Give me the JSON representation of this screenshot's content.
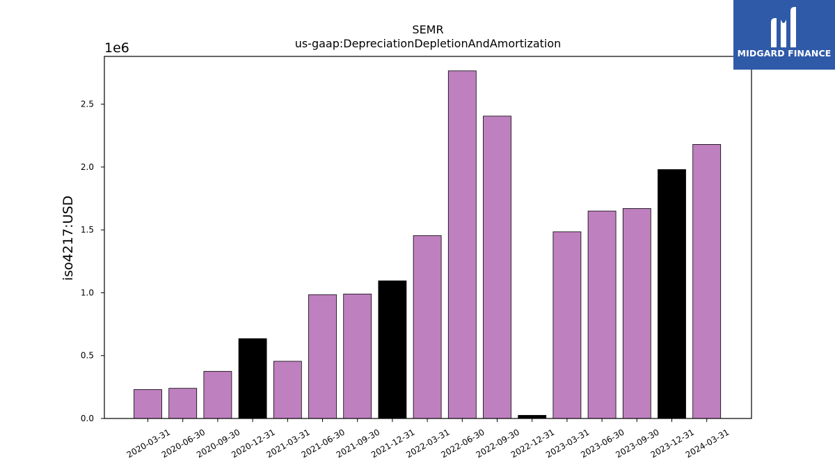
{
  "chart_data": {
    "type": "bar",
    "title": "SEMR",
    "subtitle": "us-gaap:DepreciationDepletionAndAmortization",
    "ylabel": "iso4217:USD",
    "xlabel": "",
    "y_offset_label": "1e6",
    "ylim": [
      0,
      2880000
    ],
    "yticks": [
      0,
      500000,
      1000000,
      1500000,
      2000000,
      2500000
    ],
    "ytick_labels": [
      "0.0",
      "0.5",
      "1.0",
      "1.5",
      "2.0",
      "2.5"
    ],
    "grid": false,
    "categories": [
      "2020-03-31",
      "2020-06-30",
      "2020-09-30",
      "2020-12-31",
      "2021-03-31",
      "2021-06-30",
      "2021-09-30",
      "2021-12-31",
      "2022-03-31",
      "2022-06-30",
      "2022-09-30",
      "2022-12-31",
      "2023-03-31",
      "2023-06-30",
      "2023-09-30",
      "2023-12-31",
      "2024-03-31"
    ],
    "values": [
      230000,
      240000,
      375000,
      635000,
      455000,
      985000,
      990000,
      1095000,
      1455000,
      2765000,
      2405000,
      25000,
      1485000,
      1650000,
      1670000,
      1980000,
      2180000
    ],
    "bar_colors": [
      "#bf80bf",
      "#bf80bf",
      "#bf80bf",
      "#000000",
      "#bf80bf",
      "#bf80bf",
      "#bf80bf",
      "#000000",
      "#bf80bf",
      "#bf80bf",
      "#bf80bf",
      "#000000",
      "#bf80bf",
      "#bf80bf",
      "#bf80bf",
      "#000000",
      "#bf80bf"
    ]
  },
  "logo": {
    "text": "MIDGARD FINANCE",
    "color": "#2f5aa8"
  }
}
